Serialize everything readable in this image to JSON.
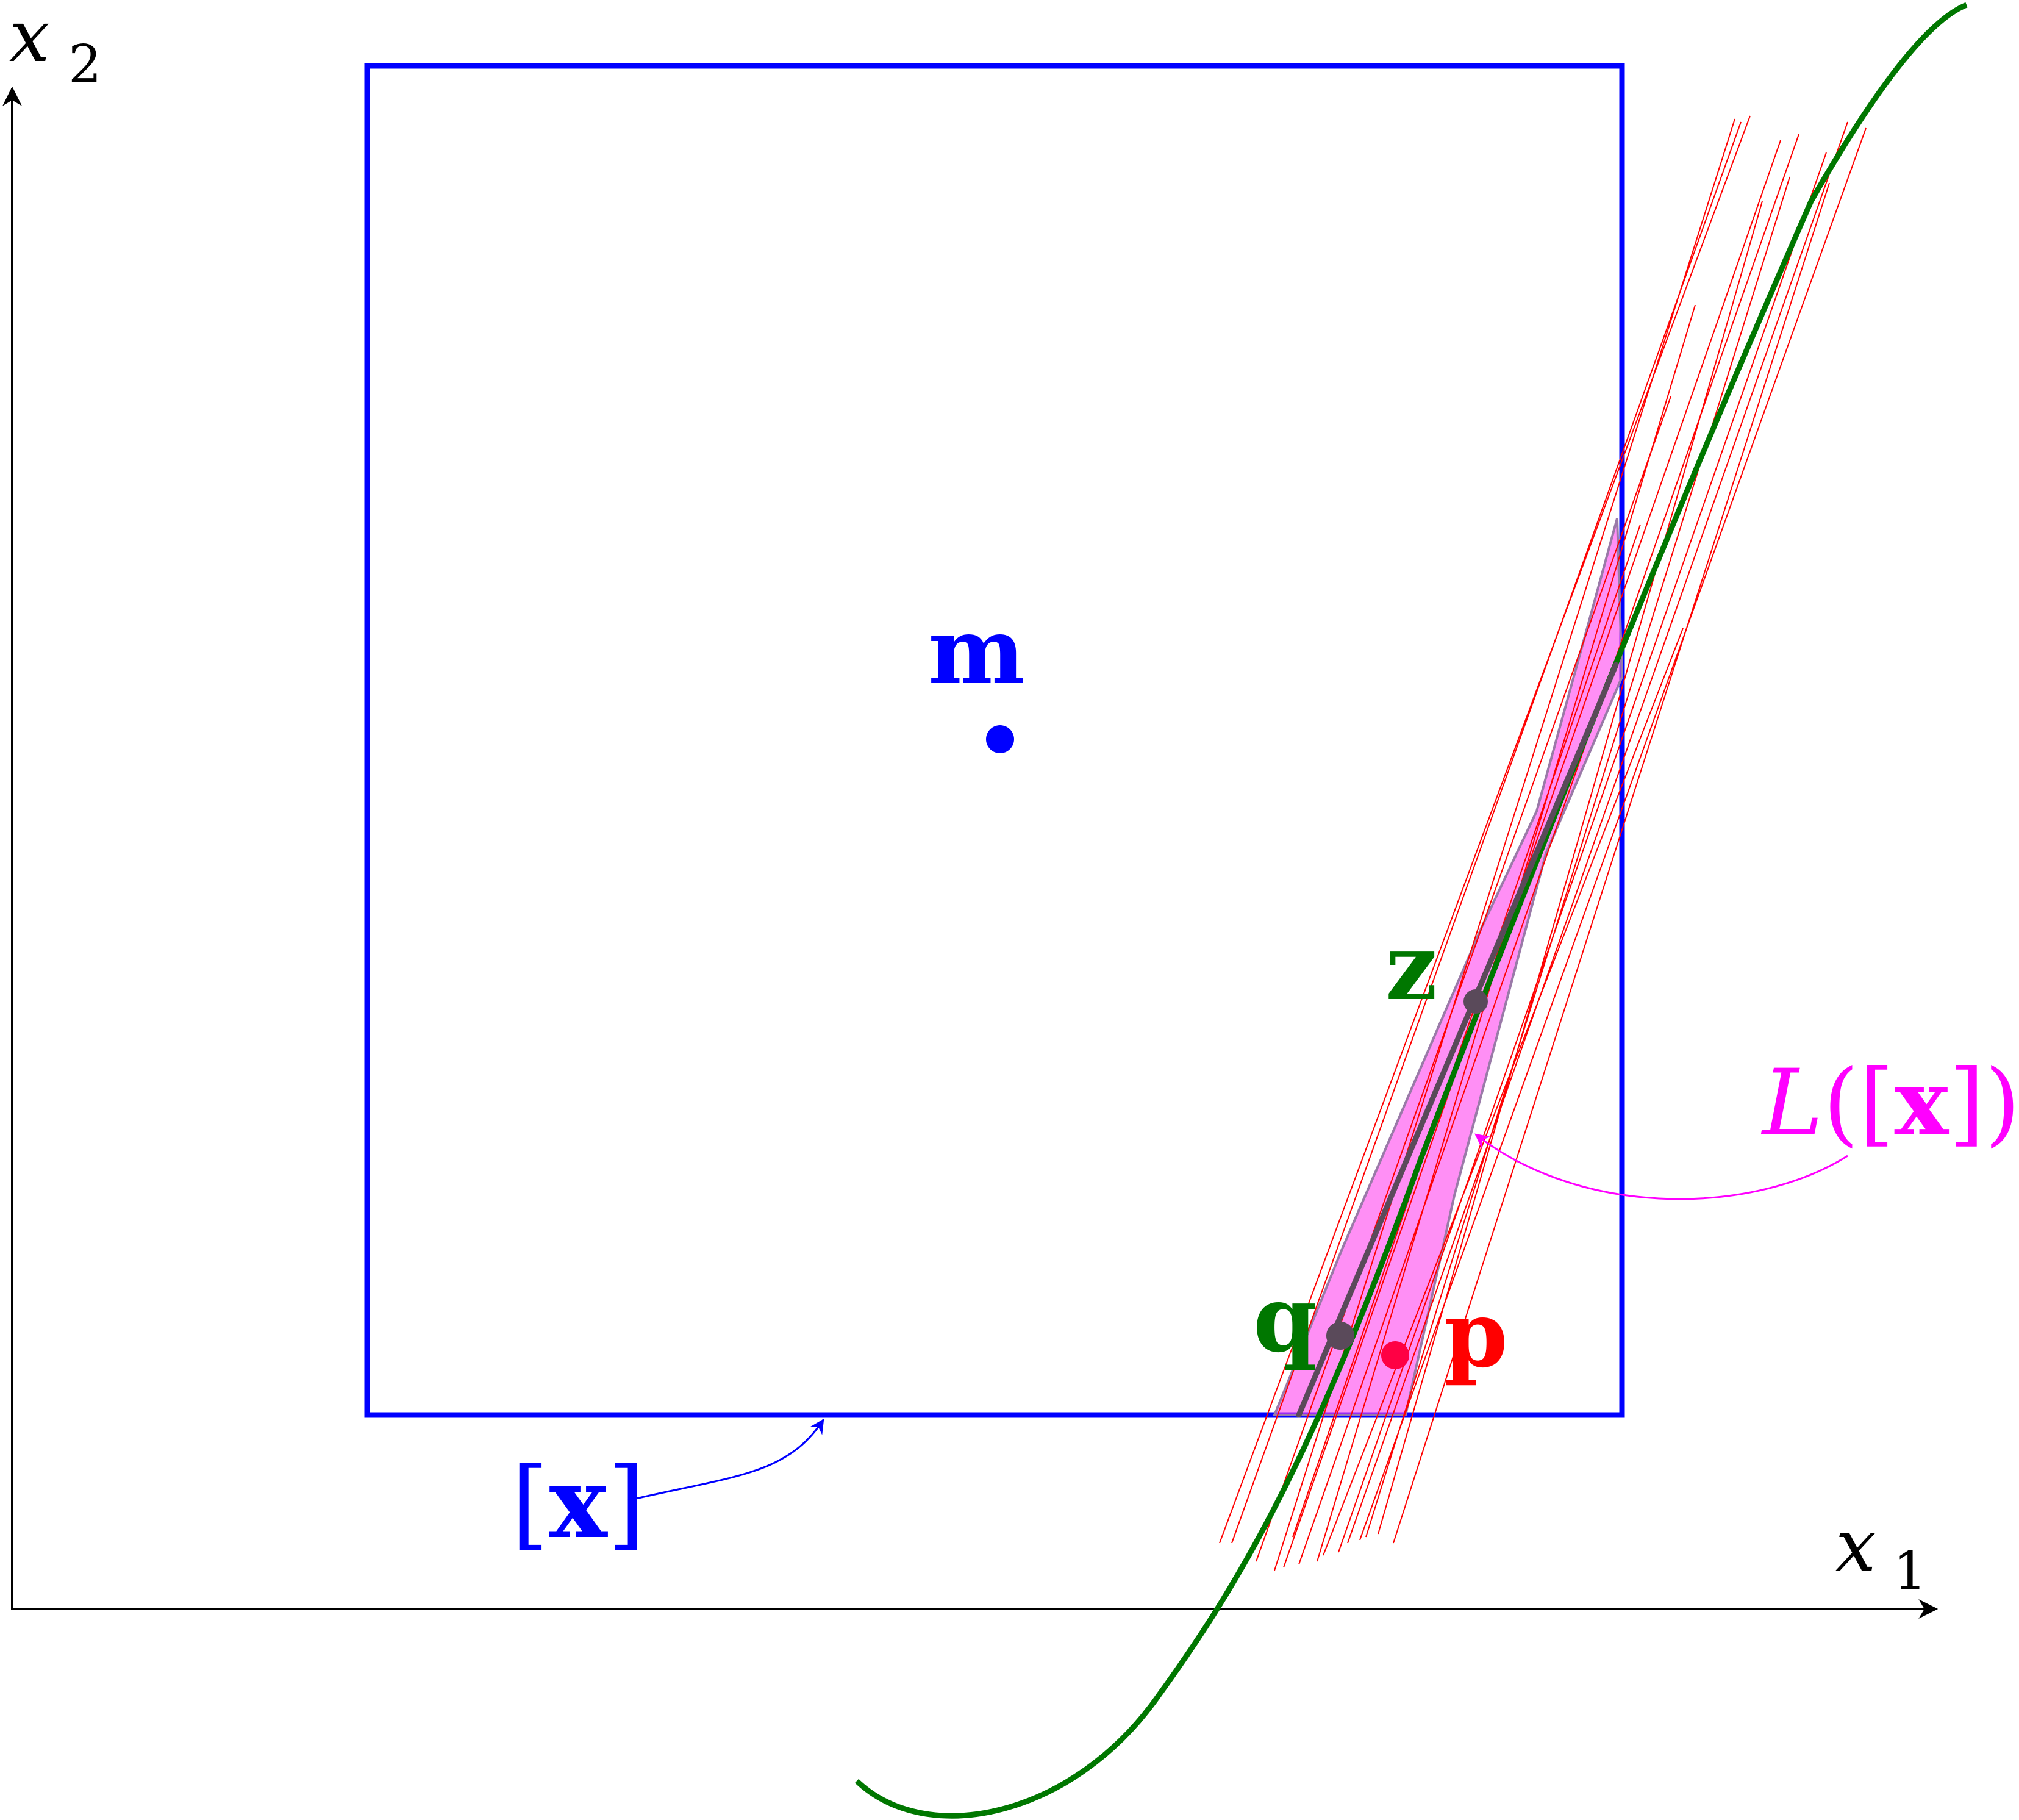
{
  "axes": {
    "x_label": "x",
    "x_label_sub": "1",
    "y_label": "x",
    "y_label_sub": "2"
  },
  "box": {
    "label_open": "[",
    "label_var": "x",
    "label_close": "]"
  },
  "points": {
    "m": "m",
    "z": "z",
    "q": "q",
    "p": "p"
  },
  "linearization": {
    "label_script": "L",
    "label_open": "([",
    "label_var": "x",
    "label_close": "])"
  },
  "colors": {
    "box": "#0000ff",
    "curve": "#007700",
    "cone_fill": "#ff44ee",
    "cone_edge": "#9a7aa8",
    "red_lines": "#ff0000",
    "segment": "#5a4a5a",
    "point_p": "#ff0044",
    "label_linearization": "#ff00ff",
    "axis": "#000000"
  }
}
